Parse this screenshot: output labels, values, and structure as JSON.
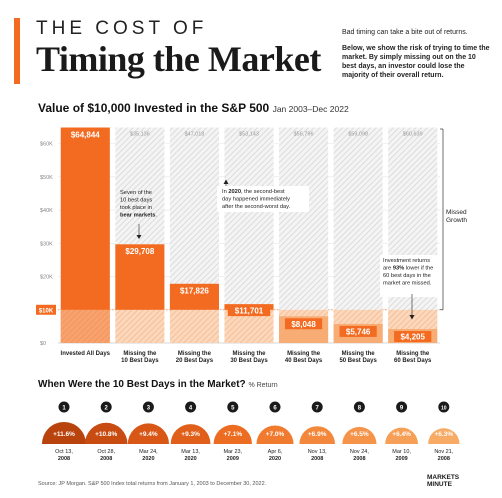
{
  "header": {
    "title_top": "THE COST OF",
    "title_main": "Timing the Market",
    "intro_1": "Bad timing can take a bite out of returns.",
    "intro_2": "Below, we show the risk of trying to time the market. By simply missing out on the 10 best days, an investor could lose the majority of their overall return."
  },
  "section": {
    "title": "Value of $10,000 Invested in the S&P 500",
    "subtitle": "Jan 2003–Dec 2022"
  },
  "chart_data": {
    "type": "bar",
    "categories": [
      "Invested All Days",
      "Missing the 10 Best Days",
      "Missing the 20 Best Days",
      "Missing the 30 Best Days",
      "Missing the 40 Best Days",
      "Missing the 50 Best Days",
      "Missing the 60 Best Days"
    ],
    "values": [
      64844,
      29708,
      17826,
      11701,
      8048,
      5746,
      4205
    ],
    "value_labels": [
      "$64,844",
      "$29,708",
      "$17,826",
      "$11,701",
      "$8,048",
      "$5,746",
      "$4,205"
    ],
    "missed_growth": [
      null,
      35136,
      47018,
      53143,
      56796,
      59098,
      60639
    ],
    "missed_labels": [
      "",
      "$35,136",
      "$47,018",
      "$53,143",
      "$56,796",
      "$59,098",
      "$60,639"
    ],
    "y_ticks": [
      0,
      10000,
      20000,
      30000,
      40000,
      50000,
      60000
    ],
    "y_tick_labels": [
      "$0",
      "$10K",
      "$20K",
      "$30K",
      "$40K",
      "$50K",
      "$60K"
    ],
    "ylim": [
      0,
      65000
    ],
    "baseline_value": 10000,
    "baseline_label": "$10K",
    "missed_growth_label": "Missed Growth",
    "annotations": [
      "Seven of the 10 best days took place in bear markets.",
      "In 2020, the second-best day happened immediately after the second-worst day.",
      "Investment returns are 93% lower if the 60 best days in the market are missed."
    ],
    "colors": {
      "bar": "#f26b21",
      "bar_faded": "#f6a86d",
      "hatch": "#dcdcdc",
      "text_light": "#9a9a9a"
    }
  },
  "best_days": {
    "title": "When Were the 10 Best Days in the Market?",
    "subtitle": "% Return",
    "items": [
      {
        "rank": "1",
        "value": "+11.6%",
        "date1": "Oct 13,",
        "date2": "2008"
      },
      {
        "rank": "2",
        "value": "+10.8%",
        "date1": "Oct 28,",
        "date2": "2008"
      },
      {
        "rank": "3",
        "value": "+9.4%",
        "date1": "Mar 24,",
        "date2": "2020"
      },
      {
        "rank": "4",
        "value": "+9.3%",
        "date1": "Mar 13,",
        "date2": "2020"
      },
      {
        "rank": "5",
        "value": "+7.1%",
        "date1": "Mar 23,",
        "date2": "2009"
      },
      {
        "rank": "6",
        "value": "+7.0%",
        "date1": "Apr 6,",
        "date2": "2020"
      },
      {
        "rank": "7",
        "value": "+6.9%",
        "date1": "Nov 13,",
        "date2": "2008"
      },
      {
        "rank": "8",
        "value": "+6.5%",
        "date1": "Nov 24,",
        "date2": "2008"
      },
      {
        "rank": "9",
        "value": "+6.4%",
        "date1": "Mar 10,",
        "date2": "2009"
      },
      {
        "rank": "10",
        "value": "+6.3%",
        "date1": "Nov 21,",
        "date2": "2008"
      }
    ],
    "colors": [
      "#b8430d",
      "#c84c12",
      "#d85717",
      "#e0601b",
      "#ec6d22",
      "#f07a2e",
      "#f3873b",
      "#f59449",
      "#f6a057",
      "#f7ab64"
    ]
  },
  "footer": {
    "source": "Source: JP Morgan. S&P 500 Index total returns from January 1, 2003 to December 30, 2022.",
    "brand_line1": "MARKETS",
    "brand_line2": "MINUTE"
  }
}
